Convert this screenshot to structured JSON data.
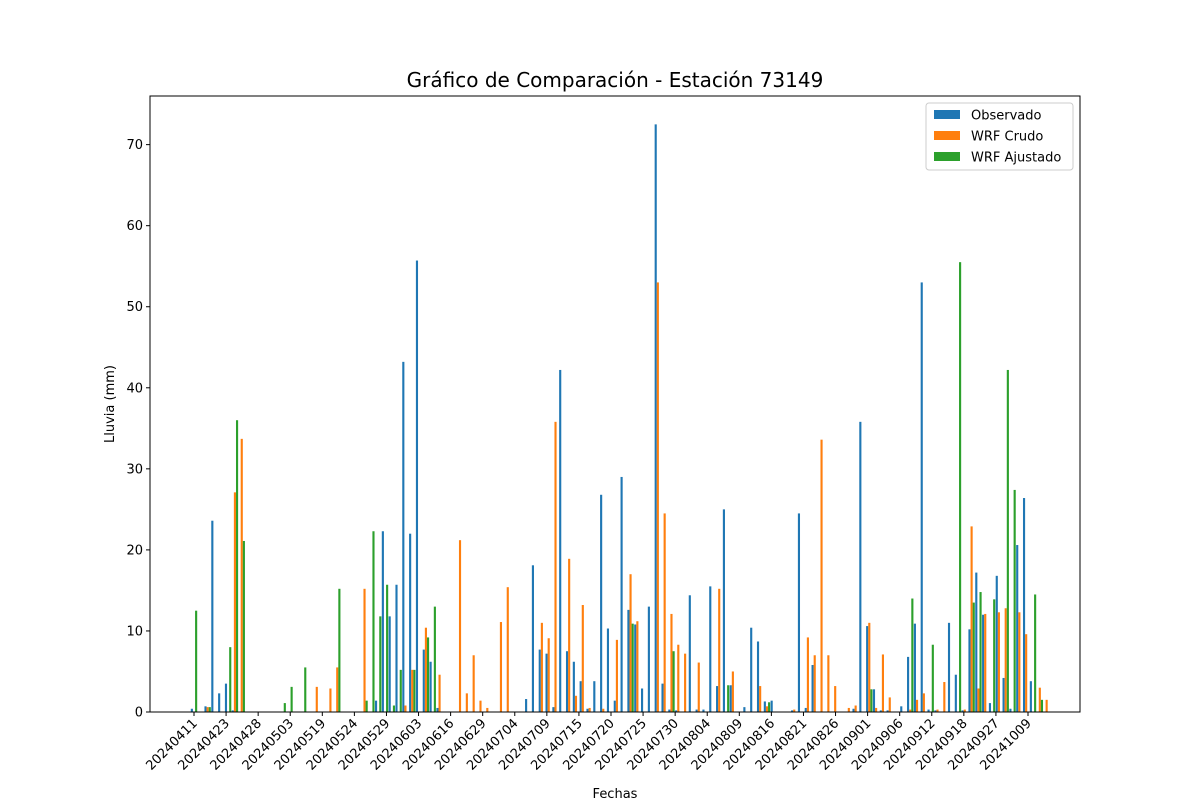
{
  "chart_data": {
    "type": "bar",
    "title": "Gráfico de Comparación - Estación 73149",
    "xlabel": "Fechas",
    "ylabel": "Lluvia (mm)",
    "ylim": [
      0,
      76
    ],
    "yticks": [
      0,
      10,
      20,
      30,
      40,
      50,
      60,
      70
    ],
    "xtick_labels": [
      "20240411",
      "20240423",
      "20240428",
      "20240503",
      "20240519",
      "20240524",
      "20240529",
      "20240603",
      "20240616",
      "20240629",
      "20240704",
      "20240709",
      "20240715",
      "20240720",
      "20240725",
      "20240730",
      "20240804",
      "20240809",
      "20240816",
      "20240821",
      "20240826",
      "20240901",
      "20240906",
      "20240912",
      "20240918",
      "20240927",
      "20241009"
    ],
    "legend": {
      "position": "top-right"
    },
    "series": [
      {
        "name": "Observado",
        "color": "#1f77b4",
        "values": [
          0.4,
          0,
          0.7,
          23.6,
          2.3,
          3.5,
          0.2,
          0,
          0,
          0,
          0,
          0,
          0,
          0,
          0,
          0,
          0,
          0,
          0,
          0,
          0,
          0,
          0,
          0,
          0,
          0,
          0,
          1.4,
          22.3,
          11.8,
          15.7,
          43.2,
          22,
          55.7,
          7.7,
          6.2,
          0.5,
          0,
          0,
          0,
          0,
          0,
          0,
          0,
          0,
          0,
          0,
          0,
          0,
          1.6,
          18.1,
          7.7,
          7.2,
          0.6,
          42.2,
          7.5,
          6.2,
          3.8,
          0.4,
          3.8,
          26.8,
          10.3,
          1.4,
          29,
          12.6,
          10.8,
          2.9,
          13,
          72.5,
          3.5,
          0.3,
          0.2,
          0,
          14.4,
          0.3,
          0.3,
          15.5,
          3.2,
          25,
          3.3,
          0,
          0.6,
          10.4,
          8.7,
          1.3,
          1.4,
          0,
          0,
          0.2,
          24.5,
          0.5,
          5.8,
          0,
          0,
          0,
          0,
          0,
          0.4,
          35.8,
          10.6,
          2.8,
          0.2,
          0.2,
          0,
          0.7,
          6.8,
          10.9,
          53,
          0.3,
          0.2,
          0,
          11,
          4.6,
          0.2,
          10.2,
          17.2,
          12,
          1.1,
          16.8,
          4.2,
          0.4,
          20.6,
          26.4,
          3.8
        ]
      },
      {
        "name": "WRF Crudo",
        "color": "#ff7f0e",
        "values": [
          0,
          0,
          0.6,
          0,
          0,
          0,
          27.1,
          33.7,
          0,
          0,
          0,
          0,
          0,
          0,
          0,
          0,
          0,
          0,
          3.1,
          0,
          2.9,
          5.5,
          0,
          0,
          0,
          15.2,
          0,
          0,
          0,
          0,
          0,
          0.8,
          5.2,
          0,
          10.4,
          0,
          4.6,
          0,
          0,
          21.2,
          2.3,
          7,
          1.4,
          0.5,
          0,
          11.1,
          15.4,
          0,
          0,
          0,
          0,
          11,
          9.1,
          35.8,
          0,
          18.9,
          2,
          13.2,
          0.5,
          0,
          0.4,
          0,
          8.9,
          0,
          17,
          11.2,
          0,
          0,
          53,
          24.5,
          12.1,
          8.3,
          7.2,
          0,
          6.1,
          0,
          0,
          15.2,
          0,
          5,
          0,
          0,
          0,
          3.2,
          0.7,
          0,
          0,
          0,
          0.3,
          0,
          9.2,
          7,
          33.6,
          7,
          3.2,
          0,
          0.5,
          0.8,
          0,
          11,
          0.5,
          7.1,
          1.8,
          0,
          0,
          0.3,
          1.5,
          2.3,
          0,
          0.3,
          3.7,
          0,
          0,
          0.3,
          22.9,
          2.9,
          12.1,
          0,
          12.3,
          12.8,
          0,
          12.3,
          9.6,
          0,
          3,
          1.5
        ]
      },
      {
        "name": "WRF Ajustado",
        "color": "#2ca02c",
        "values": [
          12.5,
          0,
          0.6,
          0,
          0,
          8,
          36,
          21.1,
          0,
          0,
          0,
          0,
          0,
          1.1,
          3.1,
          0,
          5.5,
          0,
          0,
          0,
          0,
          15.2,
          0,
          0,
          0,
          1.4,
          22.3,
          11.8,
          15.7,
          0.8,
          5.2,
          0,
          5.2,
          0,
          9.2,
          13,
          0,
          0,
          0,
          0,
          0,
          0,
          0,
          0,
          0,
          0,
          0,
          0,
          0,
          0,
          0,
          0,
          0,
          0,
          0,
          0,
          0,
          0,
          0,
          0,
          0,
          0,
          0,
          0,
          10.9,
          0,
          0,
          0,
          0,
          0,
          7.5,
          0,
          0,
          0,
          0,
          0,
          0,
          0,
          3.3,
          0,
          0,
          0,
          0,
          0,
          1.2,
          0,
          0,
          0,
          0,
          0,
          0,
          0,
          0,
          0,
          0,
          0,
          0,
          0,
          0,
          2.8,
          0,
          0,
          0,
          0,
          0,
          14,
          0,
          0,
          8.3,
          0,
          0,
          0,
          55.5,
          0,
          13.5,
          14.8,
          0,
          13.9,
          0,
          42.2,
          27.4,
          0,
          0,
          14.5,
          1.5,
          0
        ]
      }
    ]
  }
}
